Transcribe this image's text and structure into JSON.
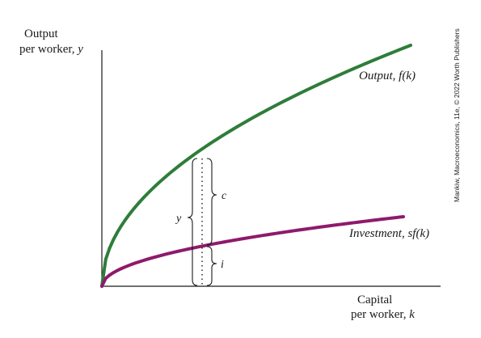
{
  "diagram": {
    "y_axis_label_line1": "Output",
    "y_axis_label_line2_prefix": "per worker, ",
    "y_axis_label_line2_var": "y",
    "x_axis_label_line1": "Capital",
    "x_axis_label_line2_prefix": "per worker, ",
    "x_axis_label_line2_var": "k",
    "output_curve_label": "Output, f(k)",
    "investment_curve_label": "Investment, sf(k)",
    "brace_y_label": "y",
    "brace_c_label": "c",
    "brace_i_label": "i",
    "credit": "Mankiw, Macroeconomics, 11e, © 2022 Worth Publishers",
    "colors": {
      "output_curve": "#2e7d3a",
      "investment_curve": "#8e1a6c",
      "axis": "#1a1a1a"
    }
  }
}
